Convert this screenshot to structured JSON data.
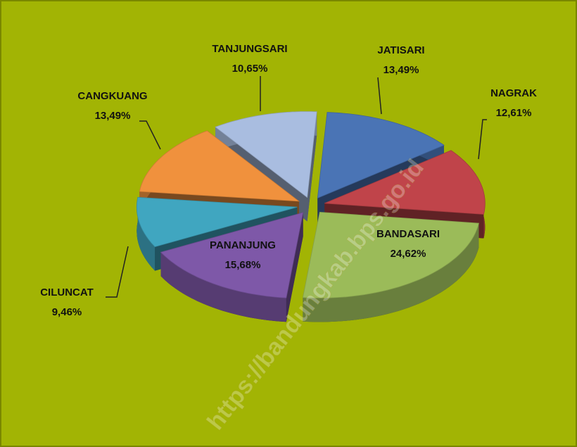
{
  "chart_data": {
    "type": "pie3d",
    "categories": [
      "JATISARI",
      "NAGRAK",
      "BANDASARI",
      "PANANJUNG",
      "CILUNCAT",
      "CANGKUANG",
      "TANJUNGSARI"
    ],
    "values": [
      13.49,
      12.61,
      24.62,
      15.68,
      9.46,
      13.49,
      10.65
    ],
    "value_labels": [
      "13,49%",
      "12,61%",
      "24,62%",
      "15,68%",
      "9,46%",
      "13,49%",
      "10,65%"
    ],
    "colors": [
      "#4a74b5",
      "#c0444a",
      "#9bbb59",
      "#7e58a8",
      "#40a6c0",
      "#f0913d",
      "#a9bde0"
    ],
    "watermark": "https://bandungkab.bps.go.id"
  }
}
